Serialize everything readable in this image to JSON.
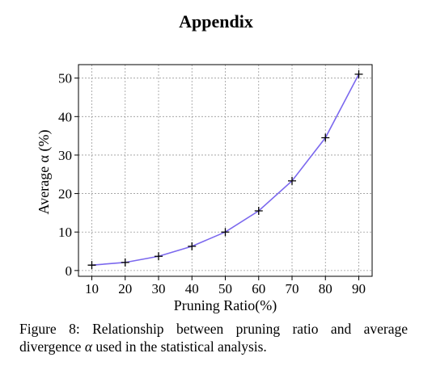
{
  "heading": "Appendix",
  "chart_data": {
    "type": "line",
    "x": [
      10,
      20,
      30,
      40,
      50,
      60,
      70,
      80,
      90
    ],
    "series": [
      {
        "values": [
          1.4,
          2.1,
          3.7,
          6.3,
          10.0,
          15.5,
          23.3,
          34.5,
          51.0
        ],
        "color": "#7b68ee",
        "marker": "+"
      }
    ],
    "xlabel": "Pruning Ratio(%)",
    "ylabel": "Average α (%)",
    "xticks": [
      10,
      20,
      30,
      40,
      50,
      60,
      70,
      80,
      90
    ],
    "yticks": [
      0,
      10,
      20,
      30,
      40,
      50
    ],
    "xlim": [
      6,
      94
    ],
    "ylim": [
      -1.5,
      53.5
    ],
    "grid": true
  },
  "caption": {
    "text_before": "Figure 8: Relationship between pruning ratio and average divergence ",
    "symbol": "α",
    "text_after": " used in the statistical analysis."
  }
}
